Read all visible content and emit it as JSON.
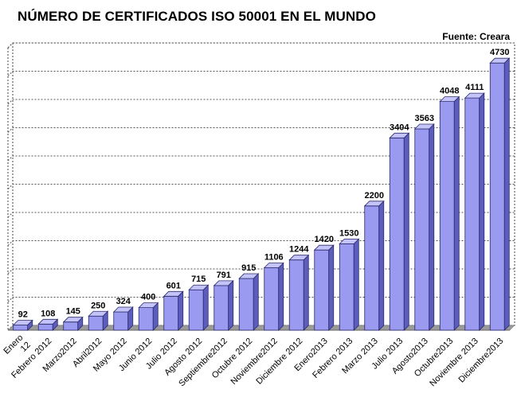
{
  "chart_data": {
    "type": "bar",
    "title": "NÚMERO DE CERTIFICADOS ISO 50001 EN EL MUNDO",
    "source": "Fuente: Creara",
    "categories": [
      "Enero 12",
      "Febrero 2012",
      "Marzo2012",
      "Abril2012",
      "Mayo 2012",
      "Junio 2012",
      "Julio 2012",
      "Agosto 2012",
      "Septiembre2012",
      "Octubre 2012",
      "Noviembre2012",
      "Diciembre 2012",
      "Enero2013",
      "Febrero 2013",
      "Marzo 2013",
      "Julio 2013",
      "Agosto2013",
      "Octubre2013",
      "Noviembre 2013",
      "Diciembre2013"
    ],
    "values": [
      92,
      108,
      145,
      250,
      324,
      400,
      601,
      715,
      791,
      915,
      1106,
      1244,
      1420,
      1530,
      2200,
      3404,
      3563,
      4048,
      4111,
      4730
    ],
    "ylim": [
      0,
      5000
    ],
    "grid": true,
    "bar_color": "#9a9af0",
    "bar_top_color": "#c4c4fa",
    "bar_side_color": "#5d5dbe",
    "floor_color": "#9a9a9a"
  }
}
